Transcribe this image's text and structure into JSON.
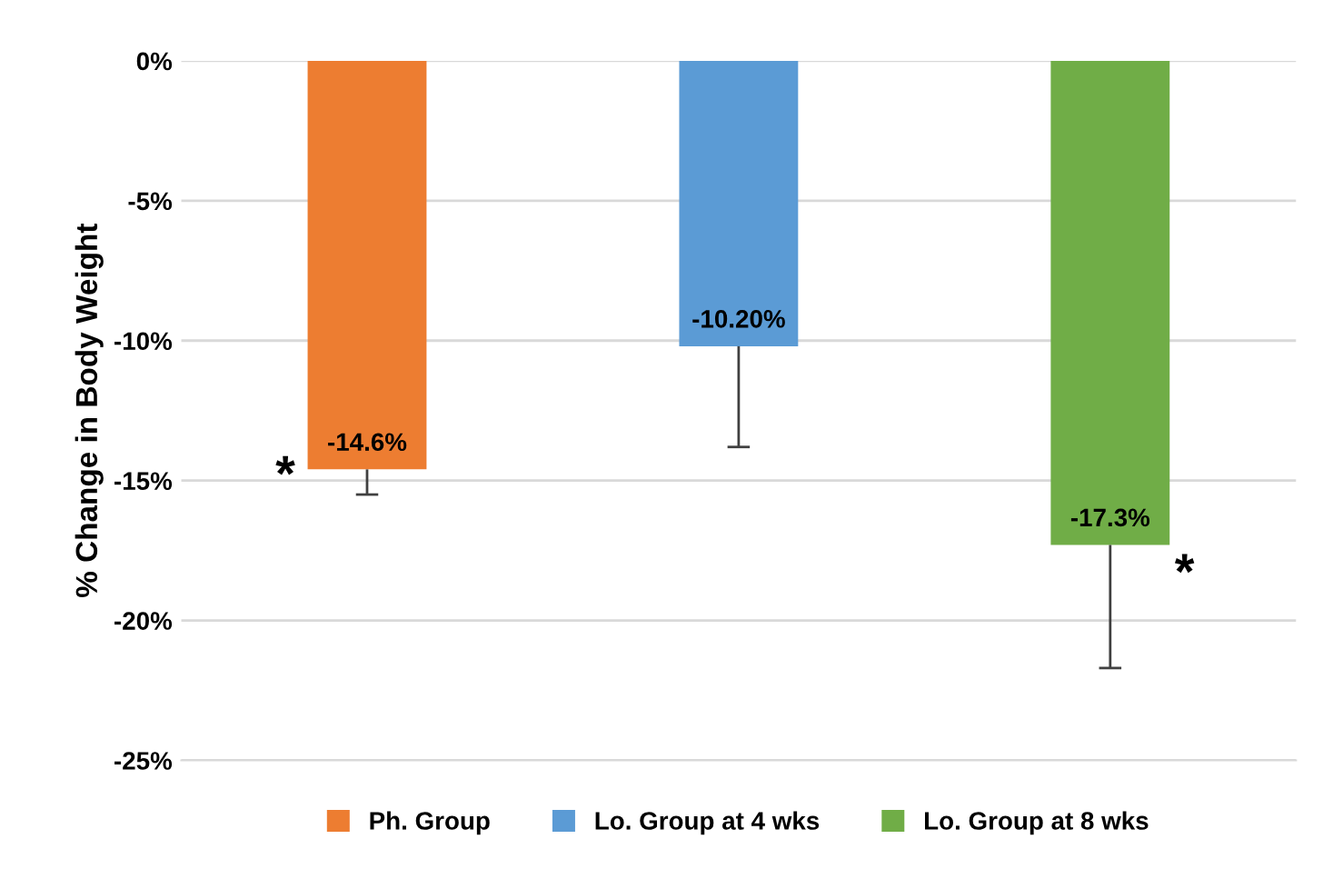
{
  "chart_data": {
    "type": "bar",
    "ylabel": "% Change in Body Weight",
    "categories": [
      null,
      null,
      null
    ],
    "series": [
      {
        "name": "Ph. Group",
        "color": "#ed7d31",
        "values": [
          -14.6,
          null,
          null
        ],
        "errors": [
          [
            -15.5,
            -14.6
          ],
          null,
          null
        ],
        "value_labels": [
          "-14.6%",
          null,
          null
        ]
      },
      {
        "name": "Lo. Group at 4 wks",
        "color": "#5b9bd5",
        "values": [
          null,
          -10.2,
          null
        ],
        "errors": [
          null,
          [
            -13.8,
            -10.2
          ],
          null
        ],
        "value_labels": [
          null,
          "-10.20%",
          null
        ]
      },
      {
        "name": "Lo. Group at 8 wks",
        "color": "#70ad47",
        "values": [
          null,
          null,
          -17.3
        ],
        "errors": [
          null,
          null,
          [
            -21.7,
            -17.3
          ]
        ],
        "value_labels": [
          null,
          null,
          "-17.3%"
        ]
      }
    ],
    "ylim": [
      -25,
      0
    ],
    "yticks": [
      {
        "value": -25,
        "label": "-25%"
      },
      {
        "value": -20,
        "label": "-20%"
      },
      {
        "value": -15,
        "label": "-15%"
      },
      {
        "value": -10,
        "label": "-10%"
      },
      {
        "value": -5,
        "label": "-5%"
      },
      {
        "value": 0,
        "label": "0%"
      }
    ],
    "grid": "y",
    "legend": "bottom",
    "annotations": [
      "*",
      "*"
    ]
  }
}
